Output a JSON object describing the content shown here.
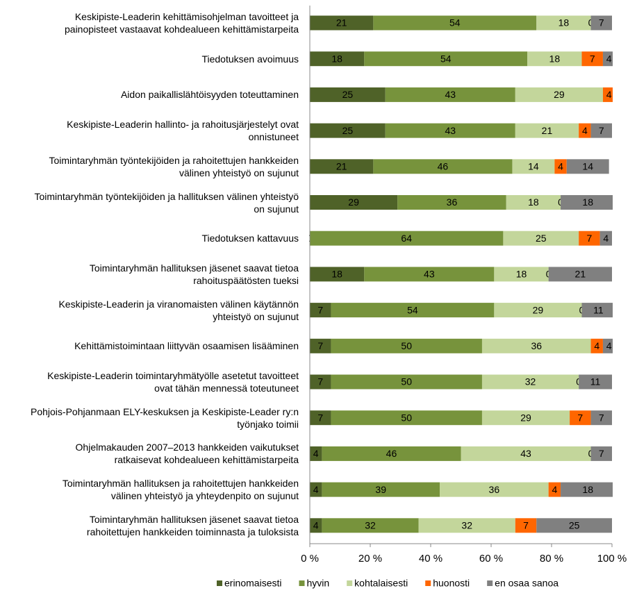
{
  "chart_data": {
    "type": "stacked-bar-horizontal",
    "categories": [
      "Keskipiste-Leaderin kehittämisohjelman tavoitteet ja\npainopisteet vastaavat kohdealueen kehittämistarpeita",
      "Tiedotuksen avoimuus",
      "Aidon paikallislähtöisyyden toteuttaminen",
      "Keskipiste-Leaderin hallinto- ja rahoitusjärjestelyt ovat\nonnistuneet",
      "Toimintaryhmän työntekijöiden ja rahoitettujen hankkeiden\nvälinen yhteistyö on sujunut",
      "Toimintaryhmän työntekijöiden ja hallituksen välinen yhteistyö\non sujunut",
      "Tiedotuksen kattavuus",
      "Toimintaryhmän hallituksen jäsenet saavat tietoa\nrahoituspäätösten tueksi",
      "Keskipiste-Leaderin ja viranomaisten välinen käytännön\nyhteistyö on sujunut",
      "Kehittämistoimintaan liittyvän osaamisen lisääminen",
      "Keskipiste-Leaderin toimintaryhmätyölle asetetut tavoitteet\novat tähän mennessä toteutuneet",
      "Pohjois-Pohjanmaan ELY-keskuksen ja Keskipiste-Leader ry:n\ntyönjako toimii",
      "Ohjelmakauden 2007–2013 hankkeiden vaikutukset\nratkaisevat kohdealueen kehittämistarpeita",
      "Toimintaryhmän hallituksen ja rahoitettujen hankkeiden\nvälinen yhteistyö ja yhteydenpito on sujunut",
      "Toimintaryhmän hallituksen jäsenet saavat tietoa\nrahoitettujen hankkeiden toiminnasta ja tuloksista"
    ],
    "series": [
      {
        "name": "erinomaisesti",
        "color": "#4f6228",
        "values": [
          21,
          18,
          25,
          25,
          21,
          29,
          0,
          18,
          7,
          7,
          7,
          7,
          4,
          4,
          4
        ]
      },
      {
        "name": "hyvin",
        "color": "#77933c",
        "values": [
          54,
          54,
          43,
          43,
          46,
          36,
          64,
          43,
          54,
          50,
          50,
          50,
          46,
          39,
          32
        ]
      },
      {
        "name": "kohtalaisesti",
        "color": "#c3d69b",
        "values": [
          18,
          18,
          29,
          21,
          14,
          18,
          25,
          18,
          29,
          36,
          32,
          29,
          43,
          36,
          32
        ]
      },
      {
        "name": "huonosti",
        "color": "#ff6600",
        "values": [
          0,
          7,
          4,
          4,
          4,
          0,
          7,
          0,
          0,
          4,
          0,
          7,
          0,
          4,
          7
        ]
      },
      {
        "name": "en osaa sanoa",
        "color": "#808080",
        "values": [
          7,
          4,
          0,
          7,
          14,
          18,
          4,
          21,
          11,
          4,
          11,
          7,
          7,
          18,
          25
        ]
      }
    ],
    "xlim": [
      0,
      100
    ],
    "xticks": [
      {
        "value": 0,
        "label": "0 %"
      },
      {
        "value": 20,
        "label": "20 %"
      },
      {
        "value": 40,
        "label": "40 %"
      },
      {
        "value": 60,
        "label": "60 %"
      },
      {
        "value": 80,
        "label": "80 %"
      },
      {
        "value": 100,
        "label": "100 %"
      }
    ],
    "grid": false,
    "legend": "bottom"
  }
}
